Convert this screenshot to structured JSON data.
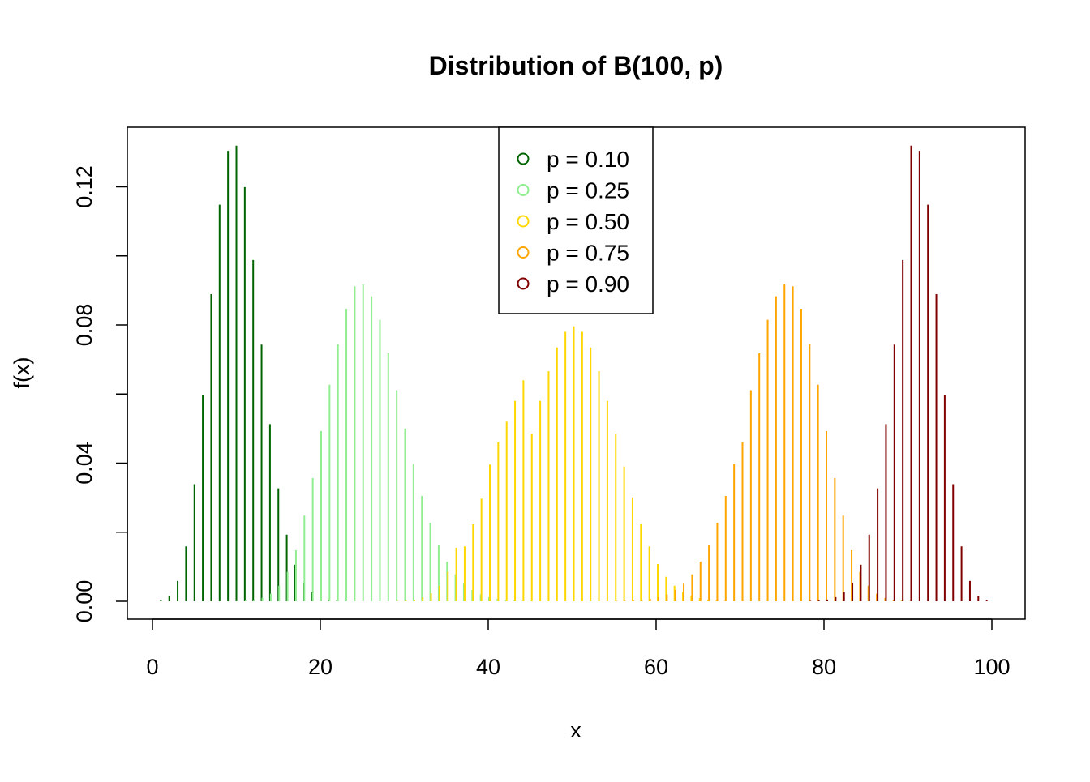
{
  "chart_data": {
    "type": "bar",
    "title": "Distribution of B(100, p)",
    "xlabel": "x",
    "ylabel": "f(x)",
    "xlim": [
      1,
      100
    ],
    "ylim": [
      0,
      0.13
    ],
    "x_ticks": [
      "0",
      "20",
      "40",
      "60",
      "80",
      "100"
    ],
    "y_ticks": [
      "0.00",
      "0.04",
      "0.08",
      "0.12"
    ],
    "grid": false,
    "legend_position": "top-center",
    "x": [
      1,
      2,
      3,
      4,
      5,
      6,
      7,
      8,
      9,
      10,
      11,
      12,
      13,
      14,
      15,
      16,
      17,
      18,
      19,
      20,
      21,
      22,
      23,
      24,
      25,
      26,
      27,
      28,
      29,
      30,
      31,
      32,
      33,
      34,
      35,
      36,
      37,
      38,
      39,
      40,
      41,
      42,
      43,
      44,
      45,
      46,
      47,
      48,
      49,
      50,
      51,
      52,
      53,
      54,
      55,
      56,
      57,
      58,
      59,
      60,
      61,
      62,
      63,
      64,
      65,
      66,
      67,
      68,
      69,
      70,
      71,
      72,
      73,
      74,
      75,
      76,
      77,
      78,
      79,
      80,
      81,
      82,
      83,
      84,
      85,
      86,
      87,
      88,
      89,
      90,
      91,
      92,
      93,
      94,
      95,
      96,
      97,
      98,
      99,
      100
    ],
    "series": [
      {
        "name": "p = 0.10",
        "color": "#006400",
        "n": 100,
        "p": 0.1,
        "values": [
          0.0003,
          0.0016,
          0.0059,
          0.0159,
          0.0339,
          0.0596,
          0.0889,
          0.1148,
          0.1304,
          0.1319,
          0.1199,
          0.0988,
          0.0743,
          0.0513,
          0.0327,
          0.0193,
          0.0106,
          0.0054,
          0.0026,
          0.0012,
          0.0005,
          0.0002,
          0.0001,
          0,
          0,
          0,
          0,
          0,
          0,
          0,
          0,
          0,
          0,
          0,
          0,
          0,
          0,
          0,
          0,
          0,
          0,
          0,
          0,
          0,
          0,
          0,
          0,
          0,
          0,
          0,
          0,
          0,
          0,
          0,
          0,
          0,
          0,
          0,
          0,
          0,
          0,
          0,
          0,
          0,
          0,
          0,
          0,
          0,
          0,
          0,
          0,
          0,
          0,
          0,
          0,
          0,
          0,
          0,
          0,
          0,
          0,
          0,
          0,
          0,
          0,
          0,
          0,
          0,
          0,
          0,
          0,
          0,
          0,
          0,
          0,
          0,
          0,
          0,
          0,
          0
        ]
      },
      {
        "name": "p = 0.25",
        "color": "#90EE90",
        "n": 100,
        "p": 0.25,
        "values": [
          0,
          0,
          0,
          0,
          0,
          0,
          0,
          0,
          0,
          0.0001,
          0.0002,
          0.0004,
          0.001,
          0.0022,
          0.0045,
          0.0085,
          0.0148,
          0.0248,
          0.0357,
          0.0493,
          0.0627,
          0.0744,
          0.0847,
          0.0912,
          0.0918,
          0.0883,
          0.0815,
          0.0718,
          0.0611,
          0.05,
          0.0397,
          0.0305,
          0.0227,
          0.0164,
          0.0115,
          0.0078,
          0.0051,
          0.0033,
          0.002,
          0.0012,
          0.0007,
          0.0004,
          0.0002,
          0.0001,
          0.0001,
          0,
          0,
          0,
          0,
          0,
          0,
          0,
          0,
          0,
          0,
          0,
          0,
          0,
          0,
          0,
          0,
          0,
          0,
          0,
          0,
          0,
          0,
          0,
          0,
          0,
          0,
          0,
          0,
          0,
          0,
          0,
          0,
          0,
          0,
          0,
          0,
          0,
          0,
          0,
          0,
          0,
          0,
          0,
          0,
          0,
          0,
          0,
          0,
          0,
          0,
          0,
          0,
          0,
          0,
          0
        ]
      },
      {
        "name": "p = 0.50",
        "color": "#FFD700",
        "n": 100,
        "p": 0.5,
        "values": [
          0,
          0,
          0,
          0,
          0,
          0,
          0,
          0,
          0,
          0,
          0,
          0,
          0,
          0,
          0,
          0,
          0,
          0,
          0,
          0,
          0,
          0,
          0,
          0,
          0,
          0,
          0,
          0,
          0.0001,
          0.0002,
          0.0005,
          0.0011,
          0.0023,
          0.0045,
          0.0086,
          0.0155,
          0.0159,
          0.0223,
          0.0297,
          0.0396,
          0.046,
          0.052,
          0.058,
          0.064,
          0.0485,
          0.058,
          0.0666,
          0.0735,
          0.078,
          0.0796,
          0.078,
          0.0735,
          0.0666,
          0.058,
          0.0485,
          0.039,
          0.0301,
          0.0223,
          0.0159,
          0.0108,
          0.0071,
          0.0045,
          0.0027,
          0.0016,
          0.0009,
          0.0005,
          0.0002,
          0.0001,
          0,
          0,
          0,
          0,
          0,
          0,
          0,
          0,
          0,
          0,
          0,
          0,
          0,
          0,
          0,
          0,
          0,
          0,
          0,
          0,
          0,
          0,
          0,
          0,
          0,
          0,
          0,
          0,
          0,
          0,
          0,
          0
        ]
      },
      {
        "name": "p = 0.75",
        "color": "#FFA500",
        "n": 100,
        "p": 0.75,
        "values": [
          0,
          0,
          0,
          0,
          0,
          0,
          0,
          0,
          0,
          0,
          0,
          0,
          0,
          0,
          0,
          0,
          0,
          0,
          0,
          0,
          0,
          0,
          0,
          0,
          0,
          0,
          0,
          0,
          0,
          0,
          0,
          0,
          0,
          0,
          0,
          0,
          0,
          0,
          0,
          0,
          0,
          0,
          0,
          0,
          0,
          0,
          0,
          0,
          0,
          0,
          0,
          0,
          0,
          0,
          0.0001,
          0.0001,
          0.0002,
          0.0004,
          0.0007,
          0.0012,
          0.002,
          0.0033,
          0.0051,
          0.0078,
          0.0115,
          0.0164,
          0.0227,
          0.0305,
          0.0397,
          0.046,
          0.0611,
          0.0718,
          0.0815,
          0.0883,
          0.0918,
          0.0912,
          0.0847,
          0.0744,
          0.0627,
          0.0493,
          0.0357,
          0.0248,
          0.0148,
          0.0085,
          0.0045,
          0.0022,
          0.001,
          0.0004,
          0.0002,
          0.0001,
          0,
          0,
          0,
          0,
          0,
          0,
          0,
          0,
          0,
          0
        ]
      },
      {
        "name": "p = 0.90",
        "color": "#800000",
        "n": 100,
        "p": 0.9,
        "values": [
          0,
          0,
          0,
          0,
          0,
          0,
          0,
          0,
          0,
          0,
          0,
          0,
          0,
          0,
          0,
          0,
          0,
          0,
          0,
          0,
          0,
          0,
          0,
          0,
          0,
          0,
          0,
          0,
          0,
          0,
          0,
          0,
          0,
          0,
          0,
          0,
          0,
          0,
          0,
          0,
          0,
          0,
          0,
          0,
          0,
          0,
          0,
          0,
          0,
          0,
          0,
          0,
          0,
          0,
          0,
          0,
          0,
          0,
          0,
          0,
          0,
          0,
          0,
          0,
          0,
          0,
          0,
          0,
          0,
          0,
          0,
          0,
          0,
          0,
          0,
          0,
          0,
          0.0001,
          0.0002,
          0.0005,
          0.0012,
          0.0026,
          0.0054,
          0.0106,
          0.0193,
          0.0327,
          0.0513,
          0.0743,
          0.0988,
          0.1319,
          0.1304,
          0.1148,
          0.0889,
          0.0596,
          0.0339,
          0.0159,
          0.0059,
          0.0016,
          0.0003,
          0
        ]
      }
    ]
  }
}
